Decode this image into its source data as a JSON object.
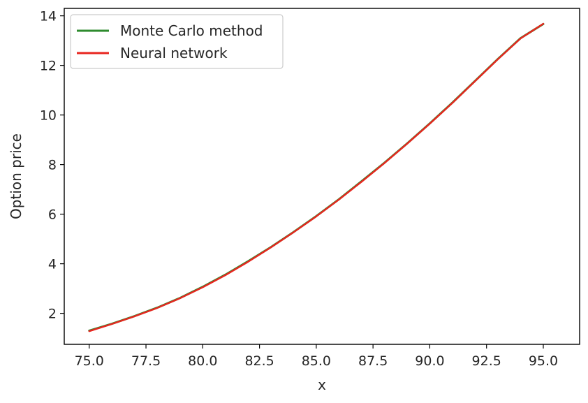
{
  "chart_data": {
    "type": "line",
    "title": "",
    "xlabel": "x",
    "ylabel": "Option price",
    "xlim": [
      73.9,
      96.6
    ],
    "ylim": [
      0.75,
      14.3
    ],
    "xticks": [
      75.0,
      77.5,
      80.0,
      82.5,
      85.0,
      87.5,
      90.0,
      92.5,
      95.0
    ],
    "xtick_labels": [
      "75.0",
      "77.5",
      "80.0",
      "82.5",
      "85.0",
      "87.5",
      "90.0",
      "92.5",
      "95.0"
    ],
    "yticks": [
      2,
      4,
      6,
      8,
      10,
      12,
      14
    ],
    "ytick_labels": [
      "2",
      "4",
      "6",
      "8",
      "10",
      "12",
      "14"
    ],
    "grid": false,
    "legend_position": "top-left",
    "x": [
      75,
      76,
      77,
      78,
      79,
      80,
      81,
      82,
      83,
      84,
      85,
      86,
      87,
      88,
      89,
      90,
      91,
      92,
      93,
      94,
      95
    ],
    "series": [
      {
        "name": "Monte Carlo method",
        "color": "#2e8b2e",
        "values": [
          1.3,
          1.58,
          1.89,
          2.23,
          2.62,
          3.07,
          3.56,
          4.1,
          4.67,
          5.28,
          5.92,
          6.6,
          7.33,
          8.07,
          8.85,
          9.66,
          10.5,
          11.38,
          12.26,
          13.1,
          13.67
        ]
      },
      {
        "name": "Neural network",
        "color": "#e8251f",
        "values": [
          1.28,
          1.57,
          1.88,
          2.22,
          2.61,
          3.05,
          3.54,
          4.08,
          4.66,
          5.27,
          5.91,
          6.59,
          7.31,
          8.06,
          8.84,
          9.65,
          10.49,
          11.37,
          12.25,
          13.09,
          13.68
        ]
      }
    ]
  }
}
